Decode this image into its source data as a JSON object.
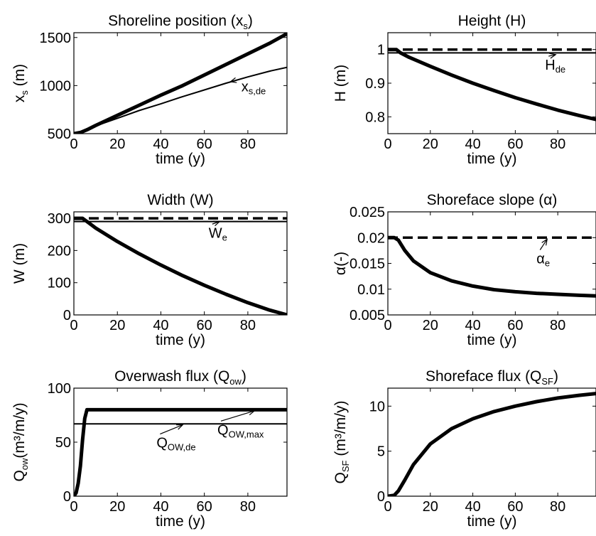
{
  "chart_data": [
    {
      "type": "line",
      "title": "Shoreline position (x",
      "title_sub": "s",
      "title_close": ")",
      "ylabel": "x",
      "ylabel_sub": "s",
      "ylabel_unit": " (m)",
      "xlabel": "time (y)",
      "xlim": [
        0,
        98
      ],
      "ylim": [
        500,
        1550
      ],
      "xticks": [
        0,
        20,
        40,
        60,
        80
      ],
      "yticks": [
        500,
        1000,
        1500
      ],
      "series": [
        {
          "x": [
            0,
            3,
            6,
            10,
            20,
            30,
            40,
            50,
            60,
            70,
            80,
            90,
            98
          ],
          "y": [
            500,
            512,
            540,
            585,
            690,
            795,
            900,
            1000,
            1110,
            1220,
            1330,
            1440,
            1540
          ],
          "style": "thick"
        },
        {
          "x": [
            0,
            3,
            6,
            10,
            20,
            30,
            40,
            50,
            60,
            70,
            80,
            90,
            98
          ],
          "y": [
            500,
            512,
            540,
            580,
            660,
            740,
            810,
            885,
            955,
            1025,
            1090,
            1150,
            1190
          ],
          "style": "thin"
        }
      ],
      "annotation": {
        "text": "x",
        "sub": "s,de",
        "x_point": 72,
        "y_point": 1040,
        "x_text": 77,
        "y_text": 940
      }
    },
    {
      "type": "line",
      "title": "Height (H)",
      "ylabel": "H (m)",
      "xlabel": "time (y)",
      "xlim": [
        0,
        98
      ],
      "ylim": [
        0.75,
        1.05
      ],
      "xticks": [
        0,
        20,
        40,
        60,
        80
      ],
      "yticks": [
        0.8,
        0.9,
        1
      ],
      "yticklabels": [
        "0.8",
        "0.9",
        "1"
      ],
      "series": [
        {
          "x": [
            0,
            98
          ],
          "y": [
            1.0,
            1.0
          ],
          "style": "dashed"
        },
        {
          "x": [
            0,
            98
          ],
          "y": [
            0.99,
            0.99
          ],
          "style": "thin"
        },
        {
          "x": [
            0,
            4,
            6,
            10,
            20,
            30,
            40,
            50,
            60,
            70,
            80,
            90,
            98
          ],
          "y": [
            1.0,
            1.0,
            0.99,
            0.977,
            0.95,
            0.924,
            0.9,
            0.878,
            0.857,
            0.838,
            0.82,
            0.804,
            0.792
          ],
          "style": "thick"
        }
      ],
      "annotation": {
        "text": "H",
        "sub": "de",
        "x_point": 79,
        "y_point": 0.985,
        "x_text": 74,
        "y_text": 0.94
      }
    },
    {
      "type": "line",
      "title": "Width (W)",
      "ylabel": "W (m)",
      "xlabel": "time (y)",
      "xlim": [
        0,
        98
      ],
      "ylim": [
        0,
        320
      ],
      "xticks": [
        0,
        20,
        40,
        60,
        80
      ],
      "yticks": [
        0,
        100,
        200,
        300
      ],
      "series": [
        {
          "x": [
            0,
            98
          ],
          "y": [
            300,
            300
          ],
          "style": "dashed"
        },
        {
          "x": [
            0,
            98
          ],
          "y": [
            290,
            290
          ],
          "style": "thin"
        },
        {
          "x": [
            0,
            4,
            6,
            10,
            20,
            30,
            40,
            50,
            60,
            70,
            80,
            90,
            98
          ],
          "y": [
            300,
            300,
            290,
            270,
            228,
            190,
            155,
            122,
            92,
            64,
            38,
            15,
            0
          ],
          "style": "thick"
        }
      ],
      "annotation": {
        "text": "W",
        "sub": "e",
        "x_point": 67,
        "y_point": 290,
        "x_text": 62,
        "y_text": 240
      }
    },
    {
      "type": "line",
      "title": "Shoreface slope (",
      "title_symbol": "α",
      "title_close": ")",
      "ylabel": "α(-)",
      "xlabel": "time (y)",
      "xlim": [
        0,
        98
      ],
      "ylim": [
        0.005,
        0.025
      ],
      "xticks": [
        0,
        20,
        40,
        60,
        80
      ],
      "yticks": [
        0.005,
        0.01,
        0.015,
        0.02,
        0.025
      ],
      "yticklabels": [
        "0.005",
        "0.01",
        "0.015",
        "0.02",
        "0.025"
      ],
      "series": [
        {
          "x": [
            0,
            98
          ],
          "y": [
            0.02,
            0.02
          ],
          "style": "dashed"
        },
        {
          "x": [
            0,
            3,
            5,
            8,
            12,
            20,
            30,
            40,
            50,
            60,
            70,
            80,
            90,
            98
          ],
          "y": [
            0.02,
            0.02,
            0.0195,
            0.0175,
            0.0155,
            0.0132,
            0.0116,
            0.0106,
            0.0099,
            0.0095,
            0.0092,
            0.009,
            0.0088,
            0.0087
          ],
          "style": "thick"
        }
      ],
      "annotation": {
        "text": "α",
        "sub": "e",
        "x_point": 75,
        "y_point": 0.0197,
        "x_text": 70,
        "y_text": 0.015
      }
    },
    {
      "type": "line",
      "title": "Overwash flux (Q",
      "title_sub": "ow",
      "title_close": ")",
      "ylabel": "Q",
      "ylabel_sub": "ow",
      "ylabel_unit": "(m³/m/y)",
      "xlabel": "time (y)",
      "xlim": [
        0,
        98
      ],
      "ylim": [
        0,
        100
      ],
      "xticks": [
        0,
        20,
        40,
        60,
        80
      ],
      "yticks": [
        0,
        50,
        100
      ],
      "series": [
        {
          "x": [
            0,
            1,
            2,
            3,
            4,
            5,
            6,
            98
          ],
          "y": [
            0,
            3,
            12,
            28,
            52,
            72,
            80,
            80
          ],
          "style": "thick"
        },
        {
          "x": [
            0,
            98
          ],
          "y": [
            67,
            67
          ],
          "style": "thin"
        }
      ],
      "annotations": [
        {
          "text": "Q",
          "sub": "OW,de",
          "x_point": 50,
          "y_point": 66,
          "x_text": 38,
          "y_text": 45
        },
        {
          "text": "Q",
          "sub": "OW,max",
          "x_point": 83,
          "y_point": 79,
          "x_text": 66,
          "y_text": 57
        }
      ]
    },
    {
      "type": "line",
      "title": "Shoreface flux (Q",
      "title_sub": "SF",
      "title_close": ")",
      "ylabel": "Q",
      "ylabel_sub": "SF",
      "ylabel_unit": " (m³/m/y)",
      "xlabel": "time (y)",
      "xlim": [
        0,
        98
      ],
      "ylim": [
        0,
        12
      ],
      "xticks": [
        0,
        20,
        40,
        60,
        80
      ],
      "yticks": [
        0,
        5,
        10
      ],
      "series": [
        {
          "x": [
            0,
            3,
            5,
            8,
            12,
            20,
            30,
            40,
            50,
            60,
            70,
            80,
            90,
            98
          ],
          "y": [
            0,
            0.1,
            0.6,
            1.8,
            3.5,
            5.8,
            7.5,
            8.6,
            9.4,
            10.0,
            10.5,
            10.9,
            11.2,
            11.4
          ],
          "style": "thick"
        }
      ]
    }
  ]
}
